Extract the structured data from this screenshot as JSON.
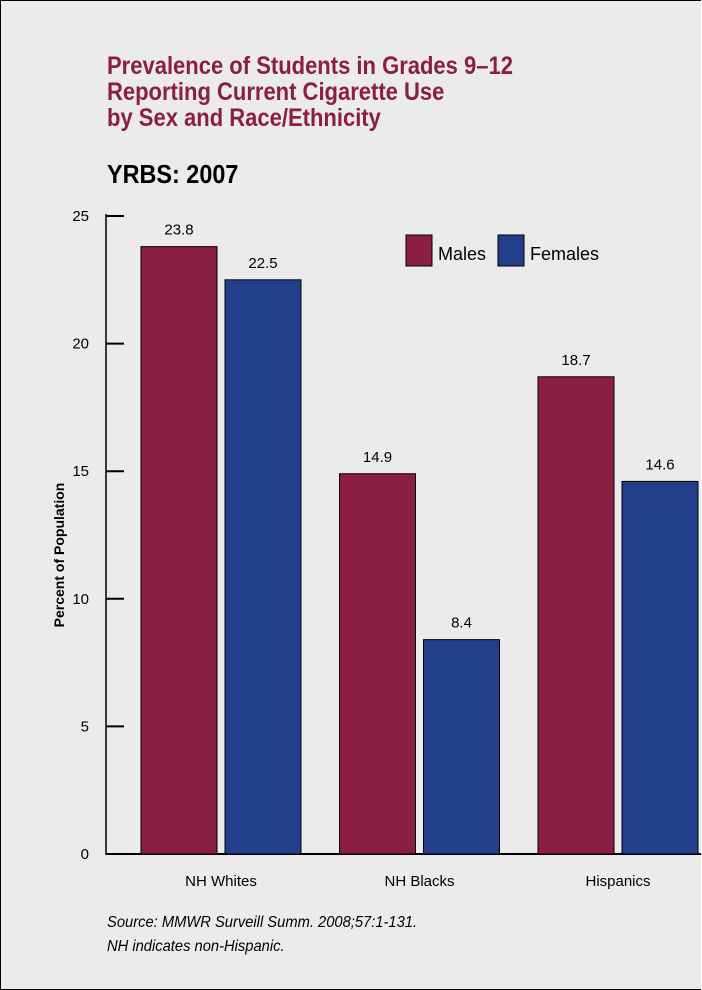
{
  "title_lines": [
    "Prevalence of Students in Grades 9–12",
    "Reporting Current Cigarette Use",
    "by Sex and Race/Ethnicity"
  ],
  "subtitle": "YRBS: 2007",
  "source_lines": [
    "Source: MMWR Surveill Summ. 2008;57:1-131.",
    "NH indicates non-Hispanic."
  ],
  "chart_data": {
    "type": "bar",
    "categories": [
      "NH Whites",
      "NH Blacks",
      "Hispanics"
    ],
    "series": [
      {
        "name": "Males",
        "values": [
          23.8,
          14.9,
          18.7
        ],
        "color": "#8b1e45"
      },
      {
        "name": "Females",
        "values": [
          22.5,
          8.4,
          14.6
        ],
        "color": "#233f8c"
      }
    ],
    "ylabel": "Percent of Population",
    "xlabel": "",
    "ylim": [
      0,
      25
    ],
    "yticks": [
      0,
      5,
      10,
      15,
      20,
      25
    ],
    "grid": false,
    "legend_position": "top-right",
    "data_labels": true
  }
}
